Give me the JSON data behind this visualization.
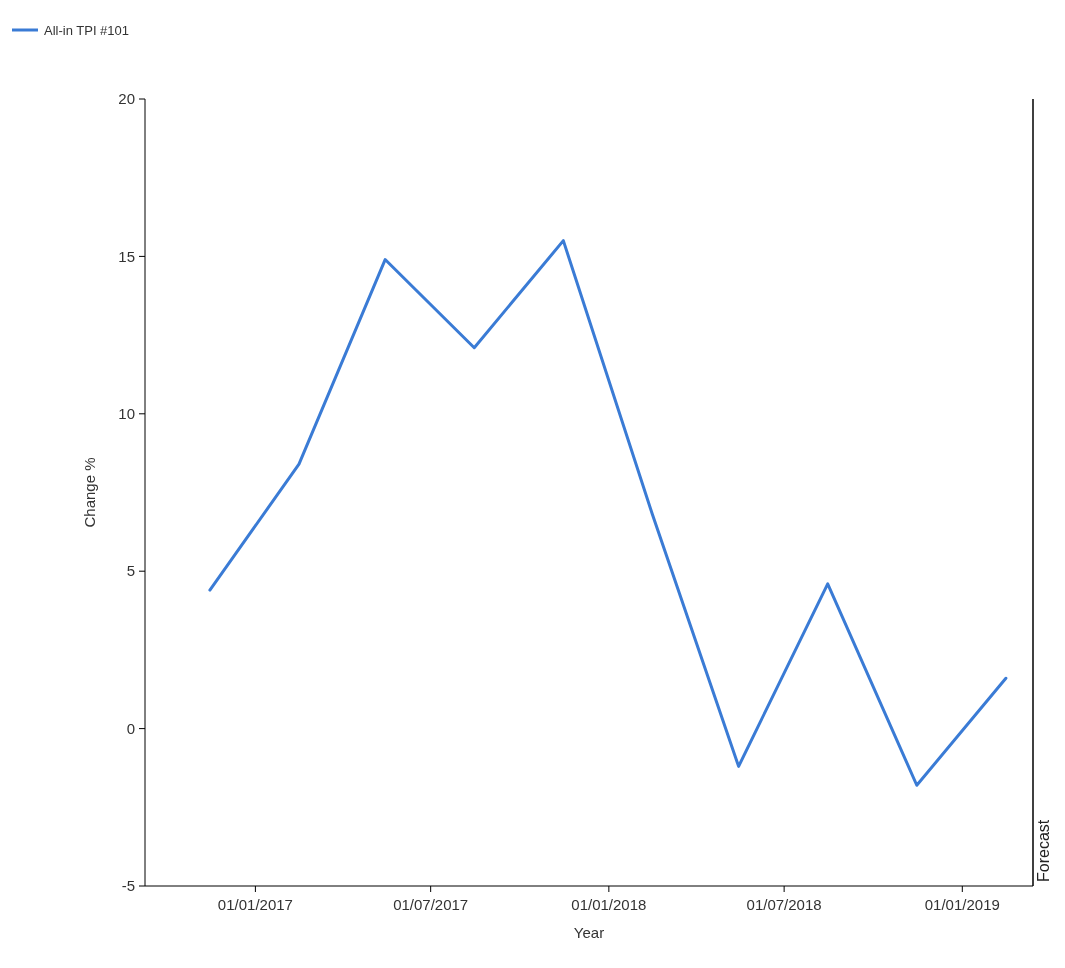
{
  "chart_data": {
    "type": "line",
    "xlabel": "Year",
    "ylabel": "Change %",
    "x": [
      "2016-11-15",
      "2017-02-15",
      "2017-05-15",
      "2017-08-15",
      "2017-11-15",
      "2018-02-15",
      "2018-05-15",
      "2018-08-15",
      "2018-11-15",
      "2019-02-15"
    ],
    "series": [
      {
        "name": "All-in TPI #101",
        "color": "#3a7bd5",
        "values": [
          4.4,
          8.4,
          14.9,
          12.1,
          15.5,
          6.8,
          -1.2,
          4.6,
          -1.8,
          1.6
        ]
      }
    ],
    "xlim": [
      "2016-09-09",
      "2019-03-15"
    ],
    "xticks": [
      {
        "value": "2017-01-01",
        "label": "01/01/2017"
      },
      {
        "value": "2017-07-01",
        "label": "01/07/2017"
      },
      {
        "value": "2018-01-01",
        "label": "01/01/2018"
      },
      {
        "value": "2018-07-01",
        "label": "01/07/2018"
      },
      {
        "value": "2019-01-01",
        "label": "01/01/2019"
      }
    ],
    "ylim": [
      -5,
      20
    ],
    "yticks": [
      -5,
      0,
      5,
      10,
      15,
      20
    ],
    "ref_lines": [
      {
        "axis": "x",
        "value": "2019-03-15",
        "label": "Forecast",
        "color": "#000000"
      }
    ],
    "grid": false,
    "legend": "top left",
    "marker": "none",
    "line_style": "solid"
  }
}
